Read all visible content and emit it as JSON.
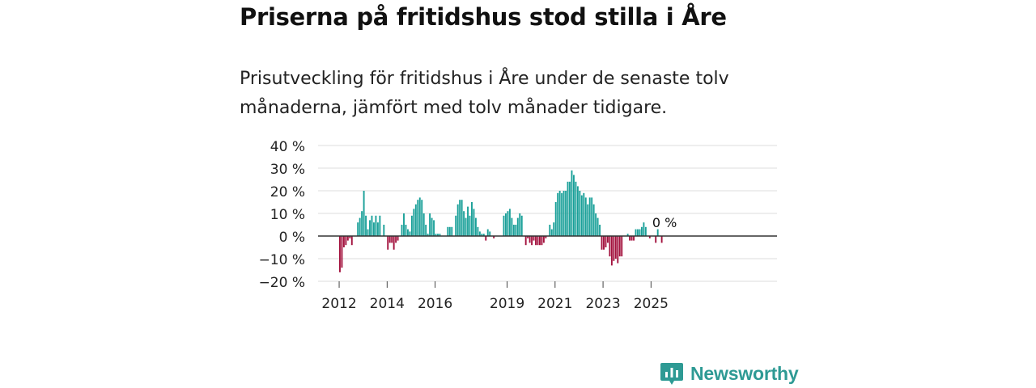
{
  "title": "Priserna på fritidshus stod stilla i Åre",
  "subtitle": "Prisutveckling för fritidshus i Åre under de senaste tolv månaderna, jämfört med tolv månader tidigare.",
  "brand": {
    "name": "Newsworthy",
    "color": "#2e9a94",
    "icon": "newsworthy-logo-icon"
  },
  "chart_data": {
    "type": "bar",
    "ylabel": "",
    "xlabel": "",
    "ylim": [
      -20,
      40
    ],
    "yticks": [
      40,
      30,
      20,
      10,
      0,
      -10,
      -20
    ],
    "ytick_labels": [
      "40 %",
      "30 %",
      "20 %",
      "10 %",
      "0 %",
      "−10 %",
      "−20 %"
    ],
    "xticks": [
      "2012",
      "2014",
      "2016",
      "2019",
      "2021",
      "2023",
      "2025"
    ],
    "xtick_months": [
      12,
      36,
      60,
      96,
      120,
      144,
      168
    ],
    "annotation": "0 %",
    "positive_color": "#1aa099",
    "negative_color": "#a3123e",
    "start": "2011-12",
    "values": [
      -16,
      -14,
      -5,
      -4,
      -2,
      -1,
      -4,
      0,
      0,
      6,
      8,
      11,
      20,
      9,
      3,
      7,
      9,
      6,
      9,
      6,
      9,
      0,
      5,
      0,
      -6,
      -3,
      -3,
      -6,
      -3,
      -2,
      0,
      5,
      10,
      5,
      3,
      2,
      9,
      12,
      14,
      16,
      17,
      16,
      10,
      5,
      1,
      10,
      8,
      7,
      1,
      1,
      1,
      0,
      0,
      0,
      4,
      4,
      4,
      0,
      9,
      14,
      16,
      16,
      11,
      8,
      13,
      9,
      15,
      12,
      8,
      4,
      2,
      1,
      1,
      -2,
      3,
      2,
      0,
      -1,
      0,
      0,
      0,
      0,
      9,
      10,
      11,
      12,
      8,
      5,
      5,
      8,
      10,
      9,
      0,
      -4,
      -1,
      -3,
      -4,
      -2,
      -4,
      -4,
      -4,
      -4,
      -3,
      -1,
      0,
      5,
      3,
      6,
      15,
      19,
      20,
      19,
      20,
      20,
      24,
      24,
      29,
      27,
      24,
      22,
      20,
      18,
      19,
      17,
      14,
      17,
      17,
      14,
      10,
      8,
      5,
      -6,
      -6,
      -5,
      -3,
      -9,
      -13,
      -11,
      -10,
      -12,
      -9,
      -9,
      0,
      0,
      1,
      -2,
      -2,
      -2,
      3,
      3,
      3,
      4,
      6,
      4,
      0,
      -1,
      0,
      0,
      -3,
      3,
      0,
      -3,
      0
    ]
  }
}
